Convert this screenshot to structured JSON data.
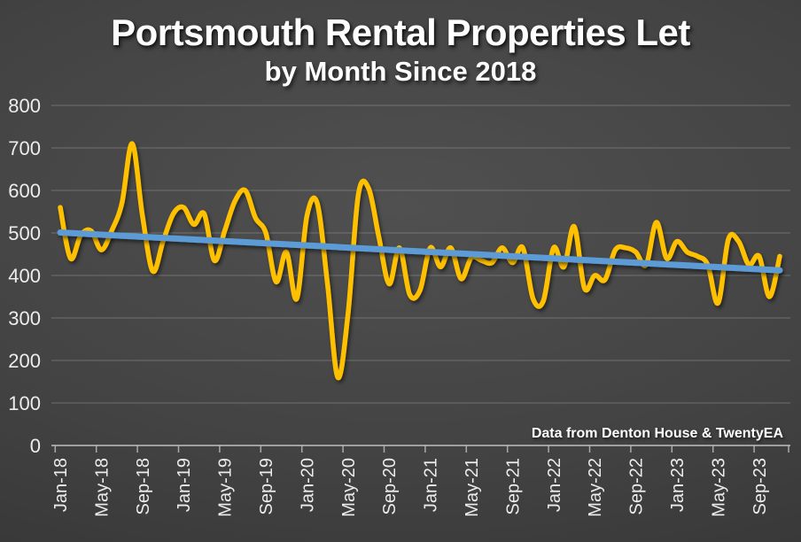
{
  "page": {
    "title": "Portsmouth Rental Properties Let",
    "subtitle": "by Month Since 2018",
    "annotation": "Data from Denton House & TwentyEA"
  },
  "chart_data": {
    "type": "line",
    "title": "Portsmouth Rental Properties Let",
    "subtitle": "by Month Since 2018",
    "annotation": "Data from Denton House & TwentyEA",
    "grid": true,
    "legend_position": "none",
    "background_color": "#3f3f3f",
    "text_color": "#ececec",
    "ylim": [
      0,
      800
    ],
    "ytick_step": 100,
    "yticks": [
      0,
      100,
      200,
      300,
      400,
      500,
      600,
      700,
      800
    ],
    "xtick_every": 4,
    "xtick_labels": [
      "Jan-18",
      "May-18",
      "Sep-18",
      "Jan-19",
      "May-19",
      "Sep-19",
      "Jan-20",
      "May-20",
      "Sep-20",
      "Jan-21",
      "May-21",
      "Sep-21",
      "Jan-22",
      "May-22",
      "Sep-22",
      "Jan-23",
      "May-23",
      "Sep-23"
    ],
    "x": [
      "Jan-18",
      "Feb-18",
      "Mar-18",
      "Apr-18",
      "May-18",
      "Jun-18",
      "Jul-18",
      "Aug-18",
      "Sep-18",
      "Oct-18",
      "Nov-18",
      "Dec-18",
      "Jan-19",
      "Feb-19",
      "Mar-19",
      "Apr-19",
      "May-19",
      "Jun-19",
      "Jul-19",
      "Aug-19",
      "Sep-19",
      "Oct-19",
      "Nov-19",
      "Dec-19",
      "Jan-20",
      "Feb-20",
      "Mar-20",
      "Apr-20",
      "May-20",
      "Jun-20",
      "Jul-20",
      "Aug-20",
      "Sep-20",
      "Oct-20",
      "Nov-20",
      "Dec-20",
      "Jan-21",
      "Feb-21",
      "Mar-21",
      "Apr-21",
      "May-21",
      "Jun-21",
      "Jul-21",
      "Aug-21",
      "Sep-21",
      "Oct-21",
      "Nov-21",
      "Dec-21",
      "Jan-22",
      "Feb-22",
      "Mar-22",
      "Apr-22",
      "May-22",
      "Jun-22",
      "Jul-22",
      "Aug-22",
      "Sep-22",
      "Oct-22",
      "Nov-22",
      "Dec-22",
      "Jan-23",
      "Feb-23",
      "Mar-23",
      "Apr-23",
      "May-23",
      "Jun-23",
      "Jul-23",
      "Aug-23",
      "Sep-23",
      "Oct-23",
      "Nov-23"
    ],
    "series": [
      {
        "name": "Rental Properties Let",
        "color": "#FFC000",
        "values": [
          560,
          440,
          495,
          505,
          460,
          505,
          570,
          710,
          540,
          410,
          480,
          545,
          560,
          520,
          545,
          435,
          505,
          575,
          600,
          535,
          500,
          385,
          455,
          345,
          540,
          570,
          380,
          160,
          310,
          590,
          605,
          490,
          380,
          465,
          355,
          365,
          465,
          420,
          465,
          392,
          442,
          435,
          430,
          465,
          430,
          465,
          345,
          340,
          465,
          420,
          515,
          370,
          400,
          390,
          460,
          465,
          455,
          425,
          525,
          440,
          480,
          455,
          445,
          425,
          335,
          485,
          480,
          425,
          445,
          350,
          445
        ]
      },
      {
        "name": "Linear Trend",
        "color": "#5B9BD5",
        "trend_start": 501,
        "trend_end": 412
      }
    ]
  }
}
